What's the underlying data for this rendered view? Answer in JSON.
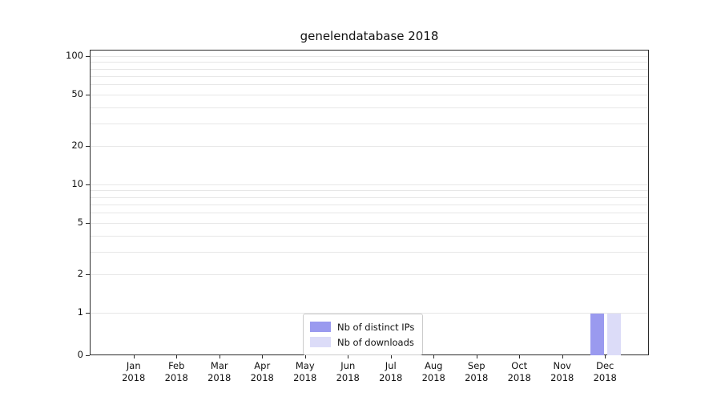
{
  "chart_data": {
    "type": "bar",
    "title": "genelendatabase 2018",
    "categories": [
      "Jan",
      "Feb",
      "Mar",
      "Apr",
      "May",
      "Jun",
      "Jul",
      "Aug",
      "Sep",
      "Oct",
      "Nov",
      "Dec"
    ],
    "category_sublabel": "2018",
    "series": [
      {
        "name": "Nb of distinct IPs",
        "color": "#9a9aef",
        "values": [
          0,
          0,
          0,
          0,
          0,
          0,
          0,
          0,
          0,
          0,
          0,
          1
        ]
      },
      {
        "name": "Nb of downloads",
        "color": "#dcdcf8",
        "values": [
          0,
          0,
          0,
          0,
          0,
          0,
          0,
          0,
          0,
          0,
          0,
          1
        ]
      }
    ],
    "yscale": "symlog",
    "yticks": [
      0,
      1,
      2,
      5,
      10,
      20,
      50,
      100
    ],
    "ylim": [
      0,
      110
    ],
    "grid": "minor-horizontal",
    "legend_position": "bottom-center"
  },
  "colors": {
    "grid": "#e7e7e7",
    "axis": "#2b2b2b",
    "background": "#ffffff"
  }
}
